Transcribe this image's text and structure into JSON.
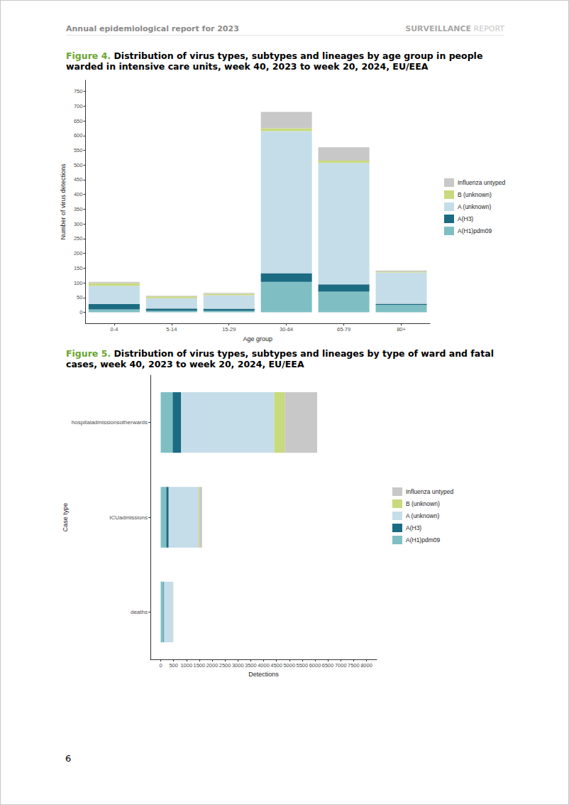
{
  "header": {
    "title": "Annual epidemiological report for 2023",
    "series_label": "SURVEILLANCE",
    "series_sub": "REPORT"
  },
  "page_number": "6",
  "chart_data": [
    {
      "type": "bar",
      "figure": "Figure 4.",
      "title": "Distribution of virus types, subtypes and lineages by age group in people warded in intensive care units, week 40, 2023 to week 20, 2024, EU/EEA",
      "xlabel": "Age group",
      "ylabel": "Number of virus detections",
      "categories": [
        "0-4",
        "5-14",
        "15-29",
        "30-64",
        "65-79",
        "80+"
      ],
      "stacked": true,
      "grid": false,
      "legend": "right",
      "ylim": [
        -37.5,
        787.5
      ],
      "yticks": [
        0,
        50,
        100,
        150,
        200,
        250,
        300,
        350,
        400,
        450,
        500,
        550,
        600,
        650,
        700,
        750
      ],
      "series": [
        {
          "name": "A(H1)pdm09",
          "color": "#7fbfc4",
          "values": [
            10,
            5,
            5,
            103,
            70,
            25
          ]
        },
        {
          "name": "A(H3)",
          "color": "#1b6b82",
          "values": [
            18,
            8,
            7,
            30,
            25,
            4
          ]
        },
        {
          "name": "A (unknown)",
          "color": "#c5dde8",
          "values": [
            62,
            35,
            46,
            482,
            412,
            106
          ]
        },
        {
          "name": "B (unknown)",
          "color": "#c9d97e",
          "values": [
            9,
            6,
            5,
            10,
            8,
            3
          ]
        },
        {
          "name": "Influenza untyped",
          "color": "#c8c8c8",
          "values": [
            4,
            2,
            3,
            55,
            45,
            4
          ]
        }
      ]
    },
    {
      "type": "bar",
      "figure": "Figure 5.",
      "title": "Distribution of virus types, subtypes and lineages by type of ward and fatal cases, week 40, 2023 to week 20, 2024, EU/EEA",
      "xlabel": "Detections",
      "ylabel": "Case type",
      "orientation": "horizontal",
      "categories": [
        "hospitaladmissionsotherwards",
        "ICUadmissions",
        "deaths"
      ],
      "stacked": true,
      "grid": false,
      "legend": "right",
      "xlim": [
        -400,
        8400
      ],
      "xticks": [
        0,
        500,
        1000,
        1500,
        2000,
        2500,
        3000,
        3500,
        4000,
        4500,
        5000,
        5500,
        6000,
        6500,
        7000,
        7500,
        8000
      ],
      "series": [
        {
          "name": "A(H1)pdm09",
          "color": "#7fbfc4",
          "values": [
            466,
            218,
            110
          ]
        },
        {
          "name": "A(H3)",
          "color": "#1b6b82",
          "values": [
            330,
            92,
            25
          ]
        },
        {
          "name": "A (unknown)",
          "color": "#c5dde8",
          "values": [
            3616,
            1143,
            340
          ]
        },
        {
          "name": "B (unknown)",
          "color": "#c9d97e",
          "values": [
            411,
            41,
            5
          ]
        },
        {
          "name": "Influenza untyped",
          "color": "#c8c8c8",
          "values": [
            1260,
            113,
            10
          ]
        }
      ]
    }
  ]
}
